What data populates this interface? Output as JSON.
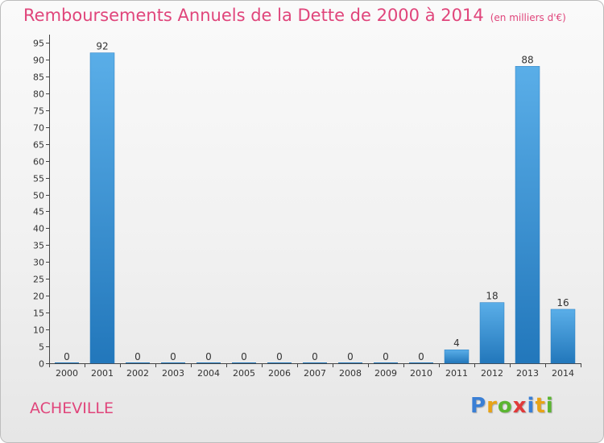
{
  "title": "Remboursements Annuels de la Dette de 2000 à 2014",
  "subtitle": "(en milliers d'€)",
  "place": "ACHEVILLE",
  "logo": {
    "text": "Proxiti",
    "letters": [
      "P",
      "r",
      "o",
      "x",
      "i",
      "t",
      "i"
    ],
    "colors": [
      "#3a7fd5",
      "#e8a317",
      "#5bb531",
      "#e03a3a",
      "#3a7fd5",
      "#e8a317",
      "#5bb531"
    ]
  },
  "colors": {
    "title": "#e0457b",
    "bar_light": "#5aaee8",
    "bar_dark": "#2277bb",
    "axis": "#444444"
  },
  "chart_data": {
    "type": "bar",
    "categories": [
      "2000",
      "2001",
      "2002",
      "2003",
      "2004",
      "2005",
      "2006",
      "2007",
      "2008",
      "2009",
      "2010",
      "2011",
      "2012",
      "2013",
      "2014"
    ],
    "values": [
      0,
      92,
      0,
      0,
      0,
      0,
      0,
      0,
      0,
      0,
      0,
      4,
      18,
      88,
      16
    ],
    "data_labels": [
      "0",
      "92",
      "0",
      "0",
      "0",
      "0",
      "0",
      "0",
      "0",
      "0",
      "0",
      "4",
      "18",
      "88",
      "16"
    ],
    "title": "Remboursements Annuels de la Dette de 2000 à 2014",
    "xlabel": "",
    "ylabel": "",
    "ylim": [
      0,
      95
    ],
    "yticks": [
      "0",
      "5",
      "10",
      "15",
      "20",
      "25",
      "30",
      "35",
      "40",
      "45",
      "50",
      "55",
      "60",
      "65",
      "70",
      "75",
      "80",
      "85",
      "90",
      "95"
    ],
    "grid": false,
    "legend": "none"
  }
}
